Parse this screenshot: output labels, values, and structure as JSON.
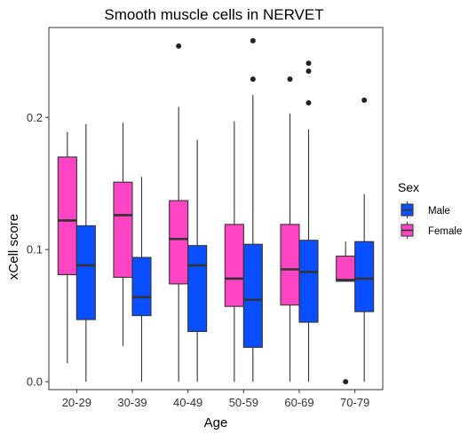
{
  "chart_data": {
    "type": "box",
    "title": "Smooth muscle cells in NERVET",
    "xlabel": "Age",
    "ylabel": "xCell score",
    "ylim": [
      -0.006,
      0.268
    ],
    "yticks": [
      0.0,
      0.1,
      0.2
    ],
    "ytick_labels": [
      "0.0",
      "0.1",
      "0.2"
    ],
    "categories": [
      "20-29",
      "30-39",
      "40-49",
      "50-59",
      "60-69",
      "70-79"
    ],
    "legend": {
      "title": "Sex",
      "position": "right",
      "entries": [
        {
          "label": "Male",
          "color": "#0a4fff"
        },
        {
          "label": "Female",
          "color": "#ff44c4"
        }
      ]
    },
    "grid": false,
    "series": [
      {
        "name": "Female",
        "color": "#ff44c4",
        "boxes": [
          {
            "q1": 0.081,
            "median": 0.122,
            "q3": 0.17,
            "whisker_low": 0.014,
            "whisker_high": 0.189,
            "outliers": []
          },
          {
            "q1": 0.079,
            "median": 0.126,
            "q3": 0.151,
            "whisker_low": 0.027,
            "whisker_high": 0.196,
            "outliers": []
          },
          {
            "q1": 0.074,
            "median": 0.108,
            "q3": 0.137,
            "whisker_low": 0.0,
            "whisker_high": 0.208,
            "outliers": [
              0.254
            ]
          },
          {
            "q1": 0.057,
            "median": 0.078,
            "q3": 0.119,
            "whisker_low": 0.0,
            "whisker_high": 0.197,
            "outliers": []
          },
          {
            "q1": 0.058,
            "median": 0.085,
            "q3": 0.119,
            "whisker_low": 0.0,
            "whisker_high": 0.203,
            "outliers": [
              0.229
            ]
          },
          {
            "q1": 0.076,
            "median": 0.077,
            "q3": 0.095,
            "whisker_low": 0.076,
            "whisker_high": 0.106,
            "outliers": [
              0.0
            ]
          }
        ]
      },
      {
        "name": "Male",
        "color": "#0a4fff",
        "boxes": [
          {
            "q1": 0.047,
            "median": 0.088,
            "q3": 0.118,
            "whisker_low": 0.0,
            "whisker_high": 0.195,
            "outliers": []
          },
          {
            "q1": 0.05,
            "median": 0.064,
            "q3": 0.094,
            "whisker_low": 0.0,
            "whisker_high": 0.155,
            "outliers": []
          },
          {
            "q1": 0.038,
            "median": 0.088,
            "q3": 0.103,
            "whisker_low": 0.0,
            "whisker_high": 0.183,
            "outliers": []
          },
          {
            "q1": 0.026,
            "median": 0.062,
            "q3": 0.104,
            "whisker_low": 0.0,
            "whisker_high": 0.217,
            "outliers": [
              0.229,
              0.258
            ]
          },
          {
            "q1": 0.045,
            "median": 0.083,
            "q3": 0.107,
            "whisker_low": 0.0,
            "whisker_high": 0.191,
            "outliers": [
              0.211,
              0.235,
              0.241
            ]
          },
          {
            "q1": 0.053,
            "median": 0.078,
            "q3": 0.106,
            "whisker_low": 0.0,
            "whisker_high": 0.142,
            "outliers": [
              0.213
            ]
          }
        ]
      }
    ]
  }
}
